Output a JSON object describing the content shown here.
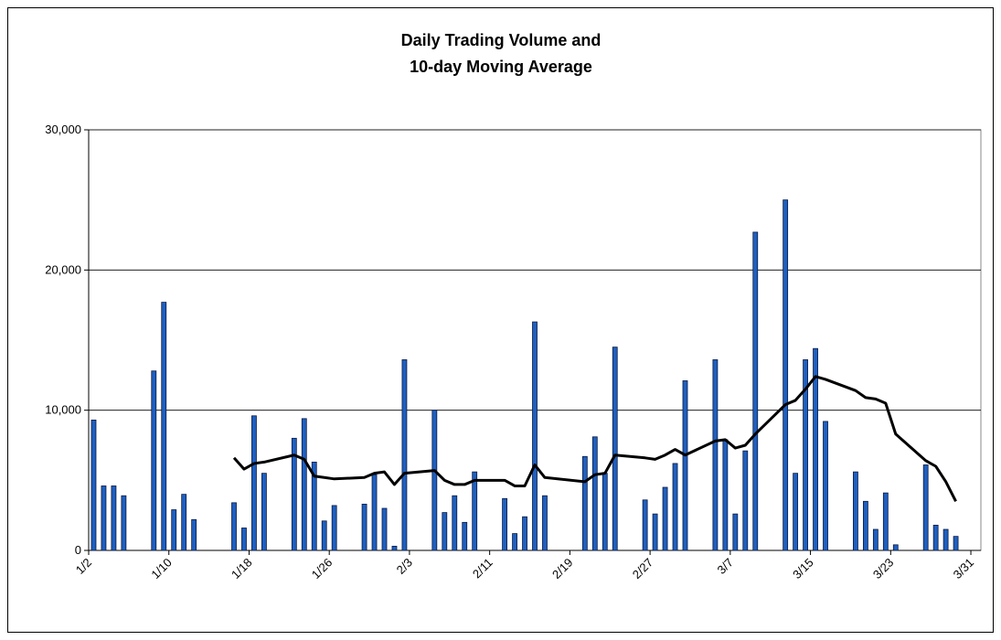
{
  "chart_data": {
    "type": "bar",
    "title": [
      "Daily Trading Volume and",
      "10-day Moving Average"
    ],
    "x": [
      "1/2",
      "1/3",
      "1/4",
      "1/5",
      "1/8",
      "1/9",
      "1/10",
      "1/11",
      "1/12",
      "1/16",
      "1/17",
      "1/18",
      "1/19",
      "1/22",
      "1/23",
      "1/24",
      "1/25",
      "1/26",
      "1/29",
      "1/30",
      "1/31",
      "2/1",
      "2/2",
      "2/5",
      "2/6",
      "2/7",
      "2/8",
      "2/9",
      "2/12",
      "2/13",
      "2/14",
      "2/15",
      "2/16",
      "2/20",
      "2/21",
      "2/22",
      "2/23",
      "2/26",
      "2/27",
      "2/28",
      "3/1",
      "3/2",
      "3/5",
      "3/6",
      "3/7",
      "3/8",
      "3/9",
      "3/12",
      "3/13",
      "3/14",
      "3/15",
      "3/16",
      "3/19",
      "3/20",
      "3/21",
      "3/22",
      "3/23",
      "3/26",
      "3/27",
      "3/28",
      "3/29"
    ],
    "series": [
      {
        "type": "bar",
        "color": "#1f5fbf",
        "values": [
          9300,
          4600,
          4600,
          3900,
          12800,
          17700,
          2900,
          4000,
          2200,
          3400,
          1600,
          9600,
          5500,
          8000,
          9400,
          6300,
          2100,
          3200,
          3300,
          5400,
          3000,
          300,
          13600,
          10000,
          2700,
          3900,
          2000,
          5600,
          3700,
          1200,
          2400,
          16300,
          3900,
          6700,
          8100,
          5500,
          14500,
          3600,
          2600,
          4500,
          6200,
          12100,
          13600,
          7900,
          2600,
          7100,
          22700,
          25000,
          5500,
          13600,
          14400,
          9200,
          5600,
          3500,
          1500,
          4100,
          400,
          6100,
          1800,
          1500,
          1000
        ]
      },
      {
        "type": "line",
        "color": "#000000",
        "values": [
          null,
          null,
          null,
          null,
          null,
          null,
          null,
          null,
          null,
          6600,
          5800,
          6200,
          6300,
          6800,
          6500,
          5300,
          5200,
          5100,
          5200,
          5500,
          5600,
          4700,
          5500,
          5700,
          5000,
          4700,
          4700,
          5000,
          5000,
          4600,
          4600,
          6100,
          5200,
          4900,
          5400,
          5500,
          6800,
          6600,
          6500,
          6800,
          7200,
          6800,
          7800,
          7900,
          7300,
          7500,
          8300,
          10400,
          10700,
          11500,
          12400,
          12200,
          11400,
          10900,
          10800,
          10500,
          8300,
          6400,
          6000,
          4900,
          3500
        ]
      }
    ],
    "xlim": [
      "1/2",
      "4/1"
    ],
    "xticks": [
      "1/2",
      "1/10",
      "1/18",
      "1/26",
      "2/3",
      "2/11",
      "2/19",
      "2/27",
      "3/7",
      "3/15",
      "3/23",
      "3/31"
    ],
    "ylim": [
      0,
      30000
    ],
    "yticks": [
      0,
      {
        "value": 10000,
        "label": "10,000"
      },
      {
        "value": 20000,
        "label": "20,000"
      },
      {
        "value": 30000,
        "label": "30,000"
      }
    ],
    "grid": true
  }
}
